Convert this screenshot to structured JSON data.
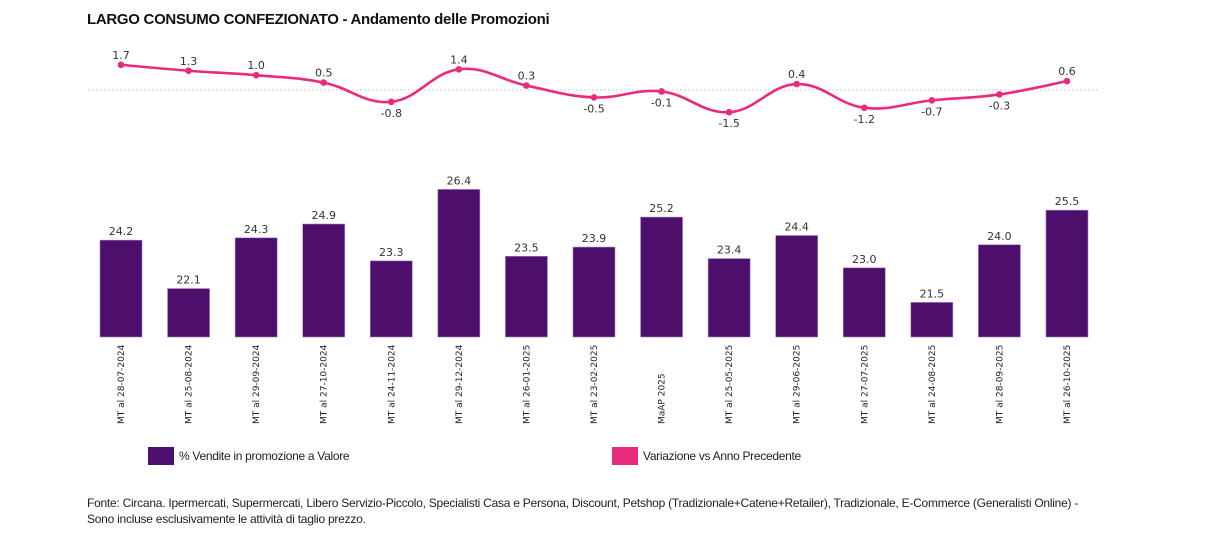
{
  "title": "LARGO CONSUMO CONFEZIONATO - Andamento delle Promozioni",
  "colors": {
    "bar": "#4d0f6b",
    "line": "#ea2a7a",
    "zero_line": "#cccccc"
  },
  "legend": [
    {
      "label": "% Vendite in promozione a Valore",
      "color": "#4d0f6b"
    },
    {
      "label": "Variazione vs Anno Precedente",
      "color": "#ea2a7a"
    }
  ],
  "footer": {
    "line1": "Fonte: Circana. Ipermercati, Supermercati, Libero Servizio-Piccolo, Specialisti Casa e Persona, Discount, Petshop (Tradizionale+Catene+Retailer), Tradizionale, E-Commerce (Generalisti Online) -",
    "line2": "Sono incluse esclusivamente le attività di taglio prezzo."
  },
  "chart_data": [
    {
      "type": "line",
      "name": "Variazione vs Anno Precedente",
      "categories": [
        "MT al 28-07-2024",
        "MT al 25-08-2024",
        "MT al 29-09-2024",
        "MT al 27-10-2024",
        "MT al 24-11-2024",
        "MT al 29-12-2024",
        "MT al 26-01-2025",
        "MT al 23-02-2025",
        "MaAP 2025",
        "MT al 25-05-2025",
        "MT al 29-06-2025",
        "MT al 27-07-2025",
        "MT al 24-08-2025",
        "MT al 28-09-2025",
        "MT al 26-10-2025"
      ],
      "values": [
        1.7,
        1.3,
        1.0,
        0.5,
        -0.8,
        1.4,
        0.3,
        -0.5,
        -0.1,
        -1.5,
        0.4,
        -1.2,
        -0.7,
        -0.3,
        0.6
      ],
      "labels": [
        "1.7",
        "1.3",
        "1.0",
        "0.5",
        "-0.8",
        "1.4",
        "0.3",
        "-0.5",
        "-0.1",
        "-1.5",
        "0.4",
        "-1.2",
        "-0.7",
        "-0.3",
        "0.6"
      ],
      "smooth": true,
      "zero_line": "dashed",
      "ylim": [
        -2,
        2
      ]
    },
    {
      "type": "bar",
      "name": "% Vendite in promozione a Valore",
      "categories": [
        "MT al 28-07-2024",
        "MT al 25-08-2024",
        "MT al 29-09-2024",
        "MT al 27-10-2024",
        "MT al 24-11-2024",
        "MT al 29-12-2024",
        "MT al 26-01-2025",
        "MT al 23-02-2025",
        "MaAP 2025",
        "MT al 25-05-2025",
        "MT al 29-06-2025",
        "MT al 27-07-2025",
        "MT al 24-08-2025",
        "MT al 28-09-2025",
        "MT al 26-10-2025"
      ],
      "values": [
        24.2,
        22.1,
        24.3,
        24.9,
        23.3,
        26.4,
        23.5,
        23.9,
        25.2,
        23.4,
        24.4,
        23.0,
        21.5,
        24.0,
        25.5
      ],
      "labels": [
        "24.2",
        "22.1",
        "24.3",
        "24.9",
        "23.3",
        "26.4",
        "23.5",
        "23.9",
        "25.2",
        "23.4",
        "24.4",
        "23.0",
        "21.5",
        "24.0",
        "25.5"
      ],
      "ylim": [
        20,
        27
      ],
      "grid": false
    }
  ]
}
